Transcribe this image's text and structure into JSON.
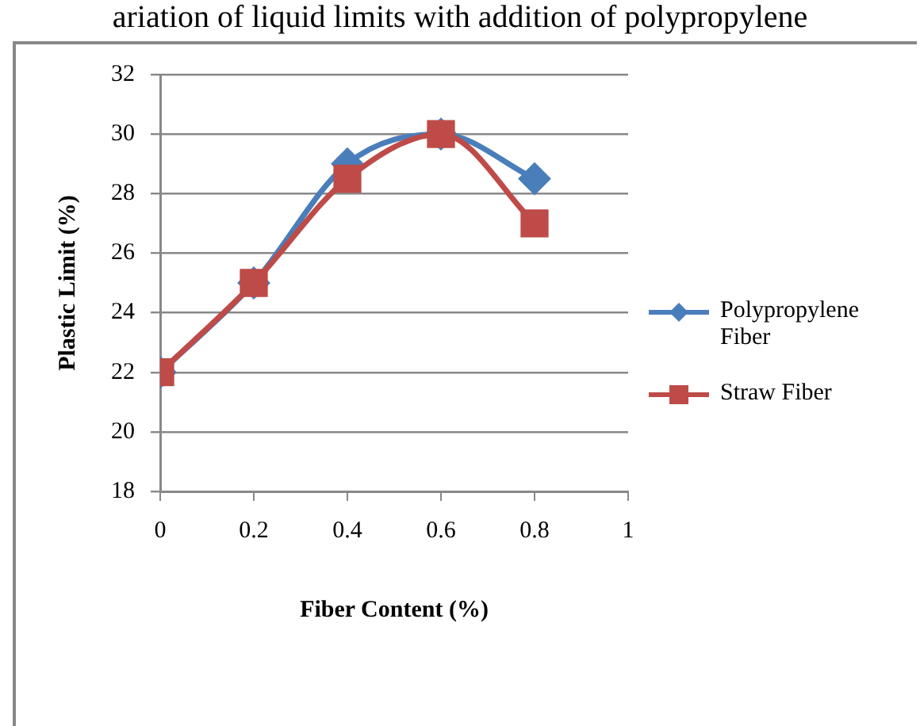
{
  "chart_data": {
    "type": "line",
    "title": "ariation of liquid limits with addition of polypropylene",
    "xlabel": "Fiber Content (%)",
    "ylabel": "Plastic Limit (%)",
    "x": [
      0,
      0.2,
      0.4,
      0.6,
      0.8
    ],
    "series": [
      {
        "name": "Polypropylene Fiber",
        "color": "#4a7ebb",
        "marker": "diamond",
        "values": [
          22,
          25,
          29,
          30,
          28.5
        ]
      },
      {
        "name": "Straw Fiber",
        "color": "#be4b48",
        "marker": "square",
        "values": [
          22,
          25,
          28.5,
          30,
          27
        ]
      }
    ],
    "xlim": [
      0,
      1
    ],
    "xticks": [
      0,
      0.2,
      0.4,
      0.6,
      0.8,
      1
    ],
    "ylim": [
      18,
      32
    ],
    "yticks": [
      18,
      20,
      22,
      24,
      26,
      28,
      30,
      32
    ],
    "grid": "y",
    "legend": "right",
    "line_style": "solid"
  }
}
